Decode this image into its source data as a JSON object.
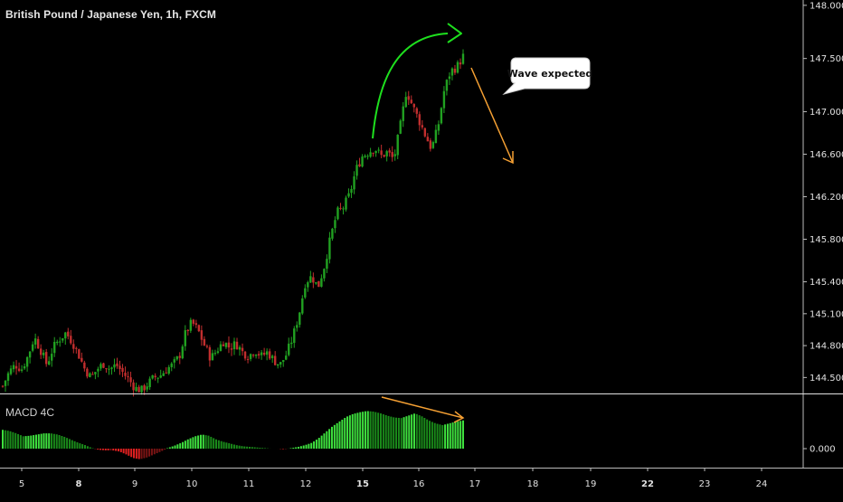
{
  "chart_data": {
    "type": "candlestick",
    "title": "British Pound / Japanese Yen, 1h, FXCM",
    "price_axis": {
      "ticks": [
        "148.000",
        "147.500",
        "147.000",
        "146.600",
        "146.200",
        "145.800",
        "145.400",
        "145.100",
        "144.800",
        "144.500"
      ],
      "range": [
        144.35,
        148.05
      ]
    },
    "date_axis": {
      "ticks": [
        {
          "label": "5",
          "bold": false
        },
        {
          "label": "8",
          "bold": true
        },
        {
          "label": "9",
          "bold": false
        },
        {
          "label": "10",
          "bold": false
        },
        {
          "label": "11",
          "bold": false
        },
        {
          "label": "12",
          "bold": false
        },
        {
          "label": "15",
          "bold": true
        },
        {
          "label": "16",
          "bold": false
        },
        {
          "label": "17",
          "bold": false
        },
        {
          "label": "18",
          "bold": false
        },
        {
          "label": "19",
          "bold": false
        },
        {
          "label": "22",
          "bold": true
        },
        {
          "label": "23",
          "bold": false
        },
        {
          "label": "24",
          "bold": false
        }
      ]
    },
    "close_path": [
      [
        0,
        144.42
      ],
      [
        2,
        144.55
      ],
      [
        4,
        144.62
      ],
      [
        6,
        144.58
      ],
      [
        8,
        144.7
      ],
      [
        10,
        144.88
      ],
      [
        12,
        144.76
      ],
      [
        14,
        144.62
      ],
      [
        16,
        144.78
      ],
      [
        18,
        144.86
      ],
      [
        20,
        144.92
      ],
      [
        22,
        144.84
      ],
      [
        24,
        144.72
      ],
      [
        26,
        144.58
      ],
      [
        28,
        144.5
      ],
      [
        30,
        144.58
      ],
      [
        32,
        144.63
      ],
      [
        34,
        144.58
      ],
      [
        36,
        144.62
      ],
      [
        38,
        144.55
      ],
      [
        40,
        144.48
      ],
      [
        42,
        144.4
      ],
      [
        44,
        144.38
      ],
      [
        46,
        144.44
      ],
      [
        48,
        144.5
      ],
      [
        50,
        144.52
      ],
      [
        52,
        144.58
      ],
      [
        54,
        144.62
      ],
      [
        56,
        144.7
      ],
      [
        58,
        144.92
      ],
      [
        60,
        145.02
      ],
      [
        62,
        144.94
      ],
      [
        64,
        144.8
      ],
      [
        66,
        144.68
      ],
      [
        68,
        144.76
      ],
      [
        70,
        144.84
      ],
      [
        72,
        144.78
      ],
      [
        74,
        144.82
      ],
      [
        76,
        144.74
      ],
      [
        78,
        144.7
      ],
      [
        80,
        144.76
      ],
      [
        82,
        144.7
      ],
      [
        84,
        144.74
      ],
      [
        86,
        144.66
      ],
      [
        88,
        144.62
      ],
      [
        90,
        144.72
      ],
      [
        92,
        144.88
      ],
      [
        94,
        145.1
      ],
      [
        96,
        145.4
      ],
      [
        98,
        145.45
      ],
      [
        100,
        145.35
      ],
      [
        102,
        145.55
      ],
      [
        104,
        145.82
      ],
      [
        106,
        146.05
      ],
      [
        108,
        146.1
      ],
      [
        110,
        146.22
      ],
      [
        112,
        146.45
      ],
      [
        114,
        146.58
      ],
      [
        116,
        146.62
      ],
      [
        118,
        146.66
      ],
      [
        120,
        146.58
      ],
      [
        122,
        146.62
      ],
      [
        124,
        146.55
      ],
      [
        126,
        146.85
      ],
      [
        128,
        147.2
      ],
      [
        130,
        147.05
      ],
      [
        132,
        146.92
      ],
      [
        134,
        146.78
      ],
      [
        136,
        146.65
      ],
      [
        138,
        146.85
      ],
      [
        140,
        147.2
      ],
      [
        142,
        147.38
      ],
      [
        144,
        147.42
      ],
      [
        146,
        147.52
      ]
    ],
    "macd_histogram": {
      "zero_label": "0.000",
      "values": [
        3.2,
        3.0,
        2.6,
        2.1,
        2.2,
        2.4,
        2.6,
        2.6,
        2.4,
        2.0,
        1.5,
        1.0,
        0.6,
        0.1,
        -0.2,
        -0.3,
        -0.3,
        -0.5,
        -1.0,
        -1.6,
        -1.8,
        -1.5,
        -1.0,
        -0.5,
        0.1,
        0.5,
        1.0,
        1.6,
        2.1,
        2.4,
        2.2,
        1.6,
        1.2,
        0.9,
        0.6,
        0.4,
        0.3,
        0.2,
        0.1,
        0.0,
        0.0,
        -0.1,
        0.1,
        0.3,
        0.6,
        1.0,
        1.8,
        2.8,
        3.8,
        4.6,
        5.4,
        5.9,
        6.2,
        6.4,
        6.3,
        6.0,
        5.6,
        5.3,
        5.2,
        5.6,
        6.0,
        5.5,
        4.8,
        4.3,
        4.0,
        4.3,
        4.6,
        4.8
      ]
    }
  },
  "annotations": {
    "callout": "Wave expected",
    "colors": {
      "bull": "#21a121",
      "bear": "#c12e2e",
      "green_arrow": "#1ee01e",
      "orange_arrow": "#f5a033",
      "grid": "#222222"
    }
  },
  "panels": {
    "macd_label": "MACD 4C"
  }
}
